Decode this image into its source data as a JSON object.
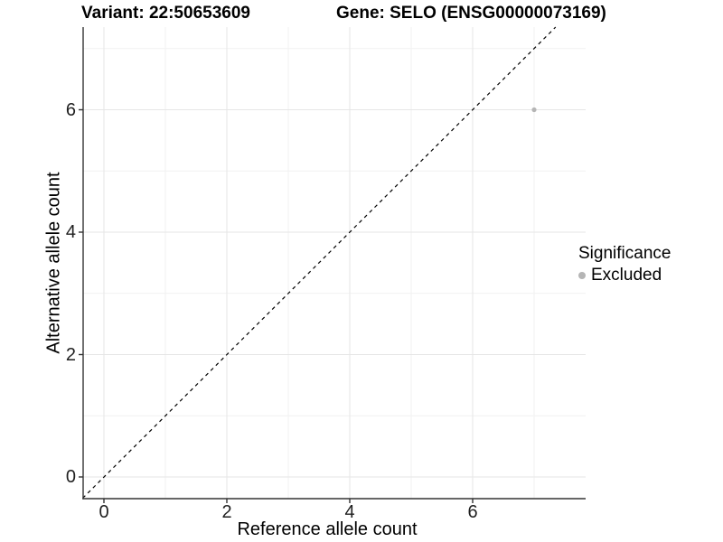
{
  "chart_data": {
    "type": "scatter",
    "titles": {
      "left": "Variant: 22:50653609",
      "right": "Gene: SELO (ENSG00000073169)"
    },
    "xlabel": "Reference allele count",
    "ylabel": "Alternative allele count",
    "x_ticks": [
      "0",
      "2",
      "4",
      "6"
    ],
    "y_ticks_top_to_bottom": [
      "6",
      "4",
      "2",
      "0"
    ],
    "xlim": [
      -0.35,
      7.85
    ],
    "ylim": [
      -0.35,
      7.35
    ],
    "grid": "major and minor, light gray, on white background",
    "points": [
      {
        "x": 7,
        "y": 6,
        "significance": "Excluded"
      }
    ],
    "reference_line": {
      "style": "dashed",
      "equation": "y = x"
    },
    "legend": {
      "position": "right",
      "title": "Significance",
      "entries": [
        {
          "label": "Excluded",
          "color": "#b5b5b5"
        }
      ]
    },
    "colors": {
      "excluded_point": "#b5b5b5",
      "grid_major": "#e6e6e6",
      "grid_minor": "#f1f1f1",
      "axis_line": "#333333",
      "identity_line": "#000000",
      "text": "#000000"
    }
  }
}
